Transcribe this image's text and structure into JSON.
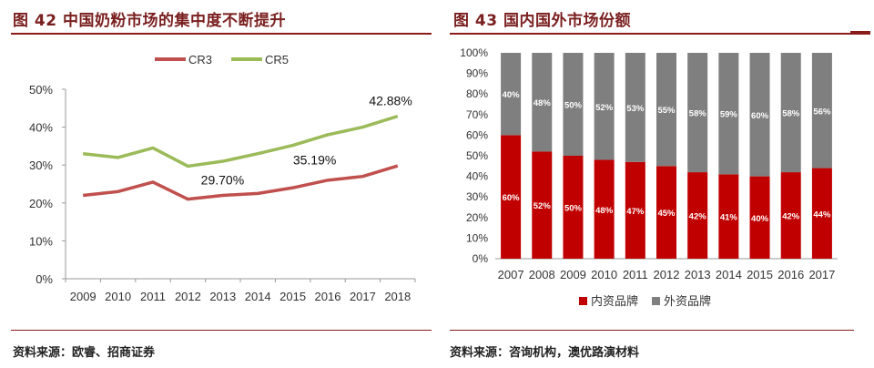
{
  "left": {
    "title": "图 42 中国奶粉市场的集中度不断提升",
    "source": "资料来源：欧睿、招商证券"
  },
  "right": {
    "title": "图 43 国内国外市场份额",
    "source": "资料来源：咨询机构，澳优路演材料"
  },
  "colors": {
    "cr3": "#c0504d",
    "cr5": "#9bbb59",
    "domestic": "#c00000",
    "foreign": "#7f7f7f",
    "title_rule": "#8b1a1a"
  },
  "chart_data": [
    {
      "type": "line",
      "categories": [
        "2009",
        "2010",
        "2011",
        "2012",
        "2013",
        "2014",
        "2015",
        "2016",
        "2017",
        "2018"
      ],
      "series": [
        {
          "name": "CR3",
          "values": [
            22.0,
            23.0,
            25.5,
            21.0,
            22.0,
            22.5,
            24.0,
            26.0,
            27.0,
            29.8
          ]
        },
        {
          "name": "CR5",
          "values": [
            33.0,
            32.0,
            34.5,
            29.7,
            31.0,
            33.0,
            35.19,
            38.0,
            40.0,
            42.88
          ]
        }
      ],
      "annotations": [
        {
          "category": "2012",
          "series": "CR5",
          "text": "29.70%"
        },
        {
          "category": "2015",
          "series": "CR5",
          "text": "35.19%"
        },
        {
          "category": "2018",
          "series": "CR5",
          "text": "42.88%"
        }
      ],
      "ylim": [
        0,
        50
      ],
      "yticks": [
        "0%",
        "10%",
        "20%",
        "30%",
        "40%",
        "50%"
      ],
      "legend_position": "top-center",
      "grid": false
    },
    {
      "type": "bar",
      "stacked": true,
      "categories": [
        "2007",
        "2008",
        "2009",
        "2010",
        "2011",
        "2012",
        "2013",
        "2014",
        "2015",
        "2016",
        "2017"
      ],
      "series": [
        {
          "name": "内资品牌",
          "values": [
            60,
            52,
            50,
            48,
            47,
            45,
            42,
            41,
            40,
            42,
            44
          ],
          "labels": [
            "60%",
            "52%",
            "50%",
            "48%",
            "47%",
            "45%",
            "42%",
            "41%",
            "40%",
            "42%",
            "44%"
          ]
        },
        {
          "name": "外资品牌",
          "values": [
            40,
            48,
            50,
            52,
            53,
            55,
            58,
            59,
            60,
            58,
            56
          ],
          "labels": [
            "40%",
            "48%",
            "50%",
            "52%",
            "53%",
            "55%",
            "58%",
            "59%",
            "60%",
            "58%",
            "56%"
          ]
        }
      ],
      "ylim": [
        0,
        100
      ],
      "yticks": [
        "0%",
        "10%",
        "20%",
        "30%",
        "40%",
        "50%",
        "60%",
        "70%",
        "80%",
        "90%",
        "100%"
      ],
      "legend_position": "bottom-center",
      "grid": false
    }
  ]
}
